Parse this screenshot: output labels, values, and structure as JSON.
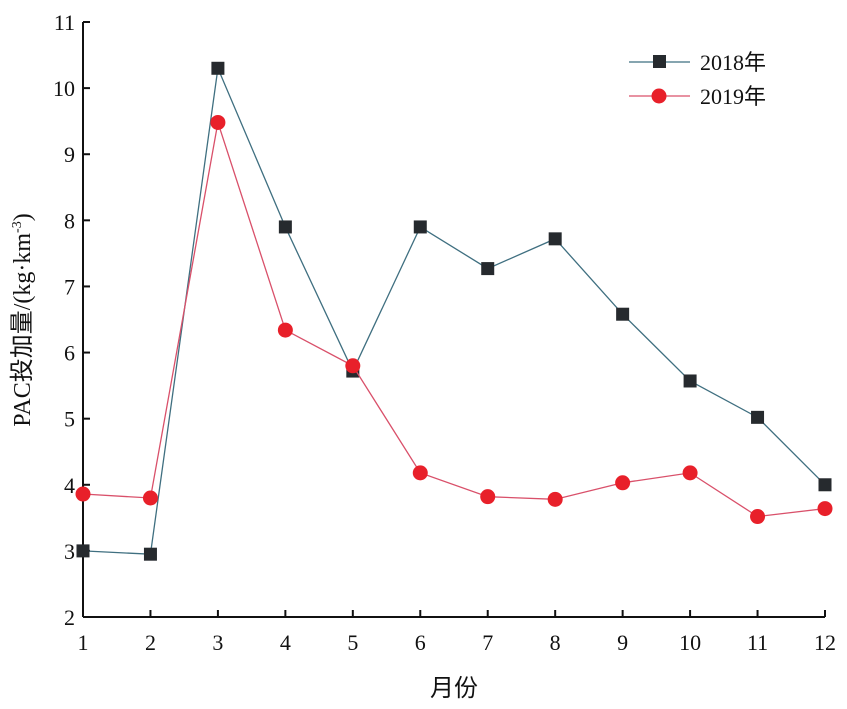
{
  "chart_data": {
    "type": "line",
    "title": "",
    "xlabel": "月份",
    "ylabel": "PAC投加量/(kg·km⁻³)",
    "ylabel_main": "PAC投加量/(kg·km",
    "ylabel_sup": "-3",
    "ylabel_close": ")",
    "x": [
      1,
      2,
      3,
      4,
      5,
      6,
      7,
      8,
      9,
      10,
      11,
      12
    ],
    "xticks": [
      "1",
      "2",
      "3",
      "4",
      "5",
      "6",
      "7",
      "8",
      "9",
      "10",
      "11",
      "12"
    ],
    "yticks": [
      "2",
      "3",
      "4",
      "5",
      "6",
      "7",
      "8",
      "9",
      "10",
      "11"
    ],
    "xlim": [
      1,
      12
    ],
    "ylim": [
      2,
      11
    ],
    "grid": false,
    "legend_position": "upper right",
    "series": [
      {
        "name": "2018年",
        "marker": "square",
        "marker_color": "#262a2e",
        "line_color": "#3f6f80",
        "values": [
          3.0,
          2.95,
          10.3,
          7.9,
          5.72,
          7.9,
          7.27,
          7.72,
          6.58,
          5.57,
          5.02,
          4.0
        ]
      },
      {
        "name": "2019年",
        "marker": "circle",
        "marker_color": "#e8202a",
        "line_color": "#d9506a",
        "values": [
          3.86,
          3.8,
          9.48,
          6.34,
          5.8,
          4.18,
          3.82,
          3.78,
          4.03,
          4.18,
          3.52,
          3.64
        ]
      }
    ]
  }
}
